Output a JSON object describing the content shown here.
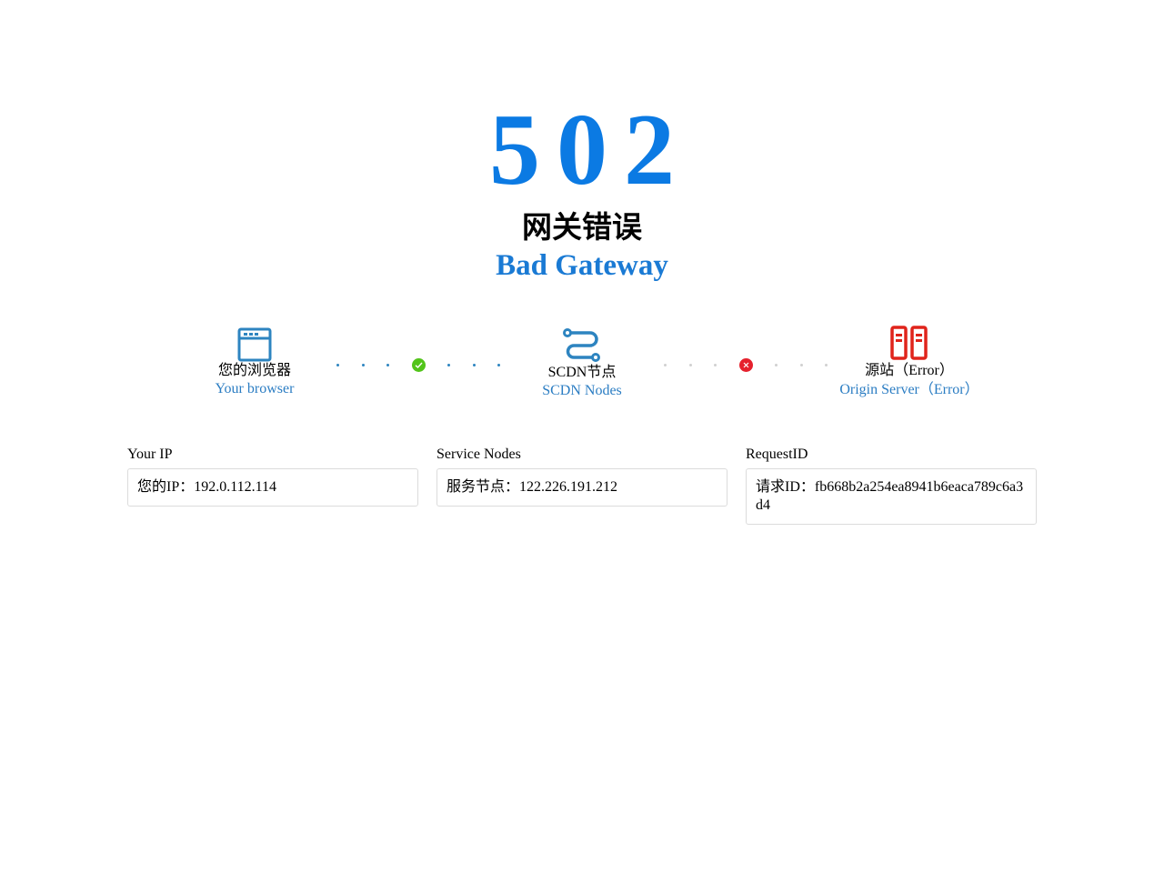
{
  "error": {
    "code": "502",
    "title_cn": "网关错误",
    "title_en": "Bad Gateway"
  },
  "colors": {
    "accent": "#0b7ae3",
    "ok": "#52c41a",
    "error": "#e5212d",
    "node_icon": "#2d84c0",
    "server_icon": "#e0241b"
  },
  "nodes": [
    {
      "icon": "browser-icon",
      "label_cn": "您的浏览器",
      "label_en": "Your browser"
    },
    {
      "icon": "route-icon",
      "label_cn": "SCDN节点",
      "label_en": "SCDN Nodes"
    },
    {
      "icon": "server-icon",
      "label_cn": "源站（Error）",
      "label_en": "Origin Server（Error）"
    }
  ],
  "links": [
    {
      "status": "ok",
      "icon": "check-circle-icon"
    },
    {
      "status": "error",
      "icon": "close-circle-icon"
    }
  ],
  "info": [
    {
      "label": "Your IP",
      "value": "您的IP：192.0.112.114"
    },
    {
      "label": "Service Nodes",
      "value": "服务节点：122.226.191.212"
    },
    {
      "label": "RequestID",
      "value": "请求ID：fb668b2a254ea8941b6eaca789c6a3d4"
    }
  ]
}
